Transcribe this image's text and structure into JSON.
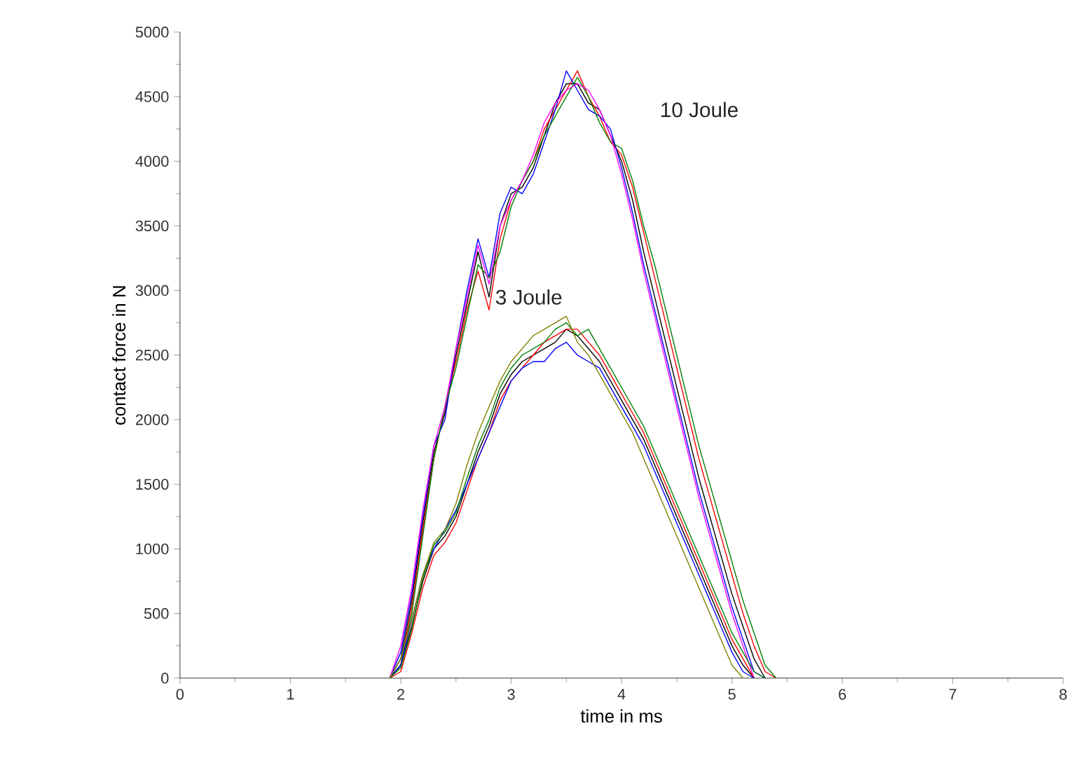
{
  "chart_data": {
    "type": "line",
    "xlabel": "time in ms",
    "ylabel": "contact force in N",
    "xlim": [
      0,
      8
    ],
    "ylim": [
      0,
      5000
    ],
    "xticks": [
      0,
      1,
      2,
      3,
      4,
      5,
      6,
      7,
      8
    ],
    "yticks": [
      0,
      500,
      1000,
      1500,
      2000,
      2500,
      3000,
      3500,
      4000,
      4500,
      5000
    ],
    "x": [
      1.9,
      2.0,
      2.1,
      2.2,
      2.3,
      2.4,
      2.5,
      2.6,
      2.7,
      2.8,
      2.9,
      3.0,
      3.1,
      3.2,
      3.3,
      3.4,
      3.5,
      3.6,
      3.7,
      3.8,
      3.9,
      4.0,
      4.1,
      4.2,
      4.3,
      4.4,
      4.5,
      4.6,
      4.7,
      4.8,
      4.9,
      5.0,
      5.1,
      5.2,
      5.3,
      5.4
    ],
    "series": [
      {
        "color": "#000000",
        "values": [
          0,
          150,
          600,
          1200,
          1750,
          2050,
          2500,
          2900,
          3300,
          2950,
          3500,
          3750,
          3800,
          3950,
          4200,
          4450,
          4600,
          4600,
          4450,
          4400,
          4200,
          4000,
          3700,
          3300,
          2950,
          2600,
          2250,
          1900,
          1550,
          1250,
          950,
          650,
          400,
          150,
          0,
          null
        ]
      },
      {
        "color": "#ff0000",
        "values": [
          0,
          100,
          550,
          1150,
          1700,
          2100,
          2450,
          2850,
          3150,
          2850,
          3400,
          3700,
          3850,
          4000,
          4250,
          4400,
          4550,
          4700,
          4500,
          4350,
          4150,
          4050,
          3800,
          3450,
          3100,
          2750,
          2400,
          2050,
          1700,
          1400,
          1100,
          800,
          500,
          250,
          50,
          0
        ]
      },
      {
        "color": "#0000ff",
        "values": [
          0,
          200,
          650,
          1250,
          1800,
          2000,
          2550,
          3000,
          3400,
          3100,
          3600,
          3800,
          3750,
          3900,
          4150,
          4400,
          4700,
          4550,
          4400,
          4350,
          4250,
          3950,
          3600,
          3200,
          2850,
          2500,
          2150,
          1800,
          1450,
          1150,
          850,
          550,
          300,
          50,
          0,
          null
        ]
      },
      {
        "color": "#008000",
        "values": [
          0,
          100,
          500,
          1100,
          1700,
          2100,
          2400,
          2800,
          3200,
          3100,
          3300,
          3650,
          3850,
          4000,
          4200,
          4350,
          4500,
          4650,
          4500,
          4300,
          4150,
          4100,
          3850,
          3500,
          3200,
          2850,
          2500,
          2150,
          1800,
          1500,
          1200,
          900,
          600,
          350,
          100,
          0
        ]
      },
      {
        "color": "#ff00ff",
        "values": [
          0,
          250,
          700,
          1300,
          1800,
          2100,
          2550,
          2950,
          3350,
          3050,
          3500,
          3700,
          3850,
          4050,
          4300,
          4450,
          4550,
          4600,
          4550,
          4400,
          4200,
          3900,
          3550,
          3150,
          2800,
          2450,
          2100,
          1750,
          1400,
          1100,
          800,
          500,
          250,
          0,
          null,
          null
        ]
      },
      {
        "color": "#000000",
        "values": [
          0,
          100,
          400,
          750,
          1000,
          1100,
          1250,
          1500,
          1750,
          1950,
          2200,
          2350,
          2450,
          2500,
          2550,
          2600,
          2700,
          2650,
          2550,
          2450,
          2300,
          2150,
          2000,
          1850,
          1650,
          1450,
          1250,
          1050,
          850,
          650,
          450,
          250,
          100,
          0,
          null,
          null
        ]
      },
      {
        "color": "#ff0000",
        "values": [
          0,
          50,
          350,
          700,
          950,
          1050,
          1200,
          1450,
          1700,
          1900,
          2150,
          2300,
          2400,
          2500,
          2600,
          2650,
          2700,
          2700,
          2600,
          2500,
          2350,
          2200,
          2050,
          1900,
          1700,
          1500,
          1300,
          1100,
          900,
          700,
          500,
          300,
          150,
          0,
          null,
          null
        ]
      },
      {
        "color": "#0000ff",
        "values": [
          0,
          100,
          450,
          800,
          1000,
          1150,
          1300,
          1500,
          1700,
          1900,
          2100,
          2300,
          2400,
          2450,
          2450,
          2550,
          2600,
          2500,
          2450,
          2400,
          2250,
          2100,
          1950,
          1800,
          1600,
          1400,
          1200,
          1000,
          800,
          600,
          400,
          200,
          50,
          0,
          null,
          null
        ]
      },
      {
        "color": "#008000",
        "values": [
          0,
          80,
          380,
          780,
          1030,
          1130,
          1280,
          1550,
          1800,
          2000,
          2250,
          2400,
          2500,
          2550,
          2600,
          2700,
          2750,
          2650,
          2700,
          2550,
          2400,
          2250,
          2100,
          1950,
          1750,
          1550,
          1350,
          1150,
          950,
          750,
          550,
          350,
          200,
          50,
          0,
          null
        ]
      },
      {
        "color": "#808000",
        "values": [
          0,
          150,
          450,
          800,
          1050,
          1150,
          1350,
          1650,
          1900,
          2100,
          2300,
          2450,
          2550,
          2650,
          2700,
          2750,
          2800,
          2600,
          2500,
          2350,
          2200,
          2050,
          1900,
          1700,
          1500,
          1300,
          1100,
          900,
          700,
          500,
          300,
          100,
          0,
          null,
          null,
          null
        ]
      }
    ],
    "annotations": [
      "10 Joule",
      "3 Joule"
    ]
  }
}
